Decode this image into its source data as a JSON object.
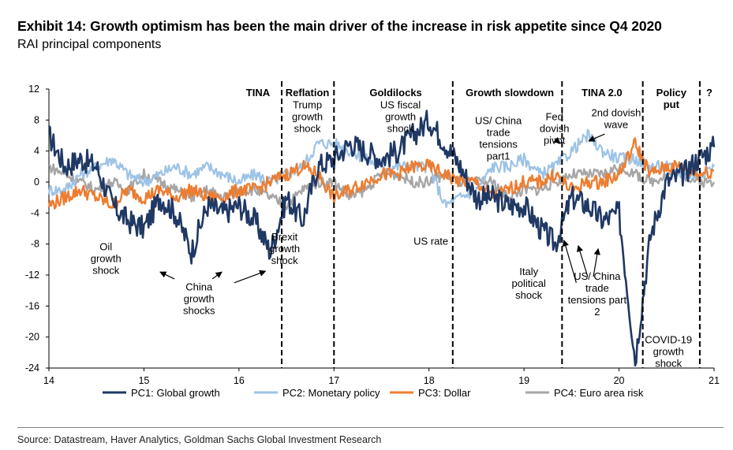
{
  "title": "Exhibit 14: Growth optimism has been the main driver of the increase in risk appetite since Q4 2020",
  "subtitle": "RAI principal components",
  "source": "Source: Datastream, Haver Analytics, Goldman Sachs Global Investment Research",
  "chart_data": {
    "type": "line",
    "title": "RAI principal components",
    "xlabel": "",
    "ylabel": "",
    "xlim": [
      2014.0,
      2021.0
    ],
    "ylim": [
      -24,
      12
    ],
    "x_ticks": [
      {
        "value": 2014.0,
        "label": "14"
      },
      {
        "value": 2015.0,
        "label": "15"
      },
      {
        "value": 2016.0,
        "label": "16"
      },
      {
        "value": 2017.0,
        "label": "17"
      },
      {
        "value": 2018.0,
        "label": "18"
      },
      {
        "value": 2019.0,
        "label": "19"
      },
      {
        "value": 2020.0,
        "label": "20"
      },
      {
        "value": 2021.0,
        "label": "21"
      }
    ],
    "y_ticks": [
      12,
      8,
      4,
      0,
      -4,
      -8,
      -12,
      -16,
      -20,
      -24
    ],
    "x": [
      2014.0,
      2014.17,
      2014.33,
      2014.5,
      2014.67,
      2014.83,
      2015.0,
      2015.17,
      2015.33,
      2015.5,
      2015.67,
      2015.83,
      2016.0,
      2016.17,
      2016.33,
      2016.5,
      2016.67,
      2016.83,
      2017.0,
      2017.17,
      2017.33,
      2017.5,
      2017.67,
      2017.83,
      2018.0,
      2018.17,
      2018.33,
      2018.5,
      2018.67,
      2018.83,
      2019.0,
      2019.17,
      2019.33,
      2019.5,
      2019.67,
      2019.83,
      2020.0,
      2020.17,
      2020.33,
      2020.5,
      2020.67,
      2020.83,
      2021.0
    ],
    "series": [
      {
        "name": "PC1: Global growth",
        "color": "#1f3864",
        "values": [
          6,
          2,
          3,
          2,
          -3,
          -5,
          -6,
          -2,
          -4,
          -9,
          -3,
          -4,
          -3,
          -5,
          -9,
          -2,
          -5,
          2,
          3,
          5,
          4,
          3,
          4,
          6,
          8,
          5,
          2,
          -2,
          -2,
          -3,
          -3,
          -6,
          -8,
          -2,
          -3,
          -5,
          -4,
          -23,
          -7,
          0,
          1,
          3,
          4.5
        ]
      },
      {
        "name": "PC2: Monetary policy",
        "color": "#9dc3e6",
        "values": [
          -1,
          -1,
          1,
          2,
          3,
          1,
          0,
          1,
          2,
          1,
          2,
          1,
          0,
          1,
          0,
          1,
          2,
          5,
          5,
          4,
          3,
          2,
          2,
          2,
          2,
          -3,
          -2,
          -1,
          2,
          2,
          3,
          1,
          2,
          4,
          6,
          4,
          3,
          3,
          2,
          2,
          1,
          1,
          2
        ]
      },
      {
        "name": "PC3: Dollar",
        "color": "#ed7d31",
        "values": [
          -3,
          -2,
          -1,
          -2,
          -3,
          -1,
          -2,
          -1,
          -2,
          -1,
          -2,
          -2,
          -1,
          -1,
          0,
          1,
          2,
          1,
          -2,
          -1,
          0,
          1,
          1,
          2,
          2,
          1,
          0,
          0,
          -2,
          -1,
          0,
          0,
          1,
          -1,
          0,
          0,
          1,
          5,
          1,
          2,
          2,
          1,
          1.5
        ]
      },
      {
        "name": "PC4: Euro area risk",
        "color": "#a6a6a6",
        "values": [
          2,
          1,
          0,
          -1,
          0,
          -1,
          1,
          0,
          -1,
          -2,
          -1,
          -2,
          -1,
          -1,
          -2,
          -3,
          -1,
          0,
          0,
          -2,
          -1,
          1,
          1,
          0,
          0,
          1,
          0,
          0,
          0,
          -2,
          -1,
          -1,
          0,
          1,
          1,
          1,
          2,
          1,
          0,
          1,
          1,
          0,
          0
        ]
      }
    ],
    "regime_boundaries": [
      2016.45,
      2017.0,
      2018.25,
      2019.4,
      2020.25,
      2020.85
    ],
    "regime_labels": [
      {
        "text": "TINA",
        "x": 2016.2
      },
      {
        "text": "Reflation",
        "x": 2016.72
      },
      {
        "text": "Goldilocks",
        "x": 2017.65
      },
      {
        "text": "Growth slowdown",
        "x": 2018.85
      },
      {
        "text": "TINA 2.0",
        "x": 2019.82
      },
      {
        "text": "Policy",
        "x": 2020.55
      },
      {
        "text": "put",
        "x": 2020.55
      },
      {
        "text": "?",
        "x": 2020.95
      }
    ],
    "annotations": [
      {
        "lines": [
          "Trump",
          "growth",
          "shock"
        ],
        "x": 2016.72,
        "y": 9.5
      },
      {
        "lines": [
          "US fiscal",
          "growth",
          "shock"
        ],
        "x": 2017.7,
        "y": 9.5
      },
      {
        "lines": [
          "US/ China",
          "trade",
          "tensions",
          "part1"
        ],
        "x": 2018.73,
        "y": 7.5
      },
      {
        "lines": [
          "Fed",
          "dovish",
          "pivot"
        ],
        "x": 2019.32,
        "y": 8.0
      },
      {
        "lines": [
          "2nd dovish",
          "wave"
        ],
        "x": 2019.97,
        "y": 8.5
      },
      {
        "lines": [
          "Brexit",
          "growth",
          "shock"
        ],
        "x": 2016.48,
        "y": -7.5
      },
      {
        "lines": [
          "US rate"
        ],
        "x": 2018.02,
        "y": -8.1
      },
      {
        "lines": [
          "Oil",
          "growth",
          "shock"
        ],
        "x": 2014.6,
        "y": -8.8
      },
      {
        "lines": [
          "China",
          "growth",
          "shocks"
        ],
        "x": 2015.58,
        "y": -14.0
      },
      {
        "lines": [
          "Italy",
          "political",
          "shock"
        ],
        "x": 2019.05,
        "y": -12.0
      },
      {
        "lines": [
          "US/ China",
          "trade",
          "tensions part",
          "2"
        ],
        "x": 2019.77,
        "y": -12.6
      },
      {
        "lines": [
          "COVID-19",
          "growth",
          "shock"
        ],
        "x": 2020.52,
        "y": -20.8
      }
    ],
    "arrows": [
      {
        "from": [
          2015.32,
          -12.5
        ],
        "to": [
          2015.17,
          -11.6
        ]
      },
      {
        "from": [
          2015.72,
          -12.5
        ],
        "to": [
          2015.82,
          -11.6
        ]
      },
      {
        "from": [
          2015.95,
          -13.0
        ],
        "to": [
          2016.28,
          -11.5
        ]
      },
      {
        "from": [
          2019.55,
          -13.0
        ],
        "to": [
          2019.42,
          -7.5
        ]
      },
      {
        "from": [
          2019.67,
          -12.2
        ],
        "to": [
          2019.57,
          -8.2
        ]
      },
      {
        "from": [
          2019.73,
          -12.2
        ],
        "to": [
          2019.78,
          -8.6
        ]
      },
      {
        "from": [
          2019.32,
          5.6
        ],
        "to": [
          2019.38,
          5.0
        ]
      },
      {
        "from": [
          2019.85,
          6.2
        ],
        "to": [
          2019.68,
          5.3
        ]
      }
    ],
    "grid": false,
    "legend": "bottom"
  }
}
